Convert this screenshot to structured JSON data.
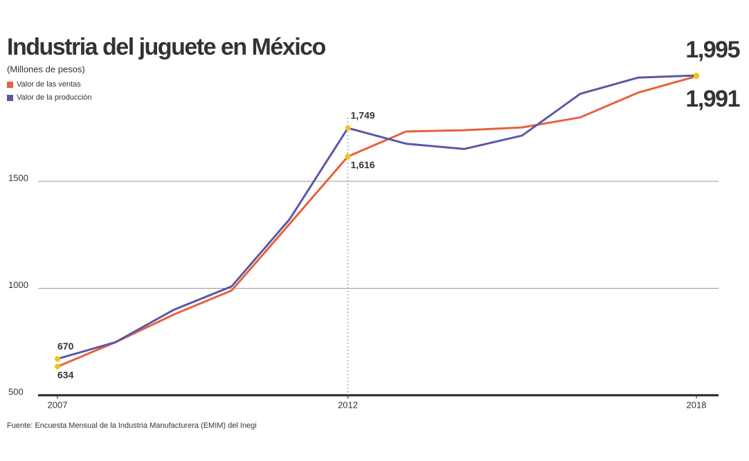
{
  "chart_data": {
    "type": "line",
    "title": "Industria del juguete en México",
    "subtitle": "(Millones de pesos)",
    "source": "Fuente: Encuesta Mensual de la Industria Manufacturera (EMIM) del Inegi",
    "x": [
      2007,
      2008,
      2009,
      2010,
      2011,
      2012,
      2013,
      2014,
      2015,
      2016,
      2017,
      2018
    ],
    "xlim": [
      2007,
      2018
    ],
    "xticks": [
      2007,
      2012,
      2018
    ],
    "ylim": [
      500,
      2050
    ],
    "yticks": [
      500,
      1000,
      1500
    ],
    "grid": true,
    "legend": "top-left",
    "series": [
      {
        "name": "Valor de las ventas",
        "color": "#e8603c",
        "values": [
          634,
          748,
          877,
          990,
          1302,
          1616,
          1733,
          1739,
          1752,
          1799,
          1915,
          1991
        ],
        "value_labels": [
          "634",
          null,
          null,
          null,
          null,
          "1,616",
          null,
          null,
          null,
          null,
          null,
          "1,991"
        ]
      },
      {
        "name": "Valor de la producción",
        "color": "#5b58a6",
        "values": [
          670,
          748,
          899,
          1009,
          1324,
          1749,
          1676,
          1651,
          1714,
          1909,
          1985,
          1995
        ],
        "value_labels": [
          "670",
          null,
          null,
          null,
          null,
          "1,749",
          null,
          null,
          null,
          null,
          null,
          "1,995"
        ]
      }
    ]
  }
}
